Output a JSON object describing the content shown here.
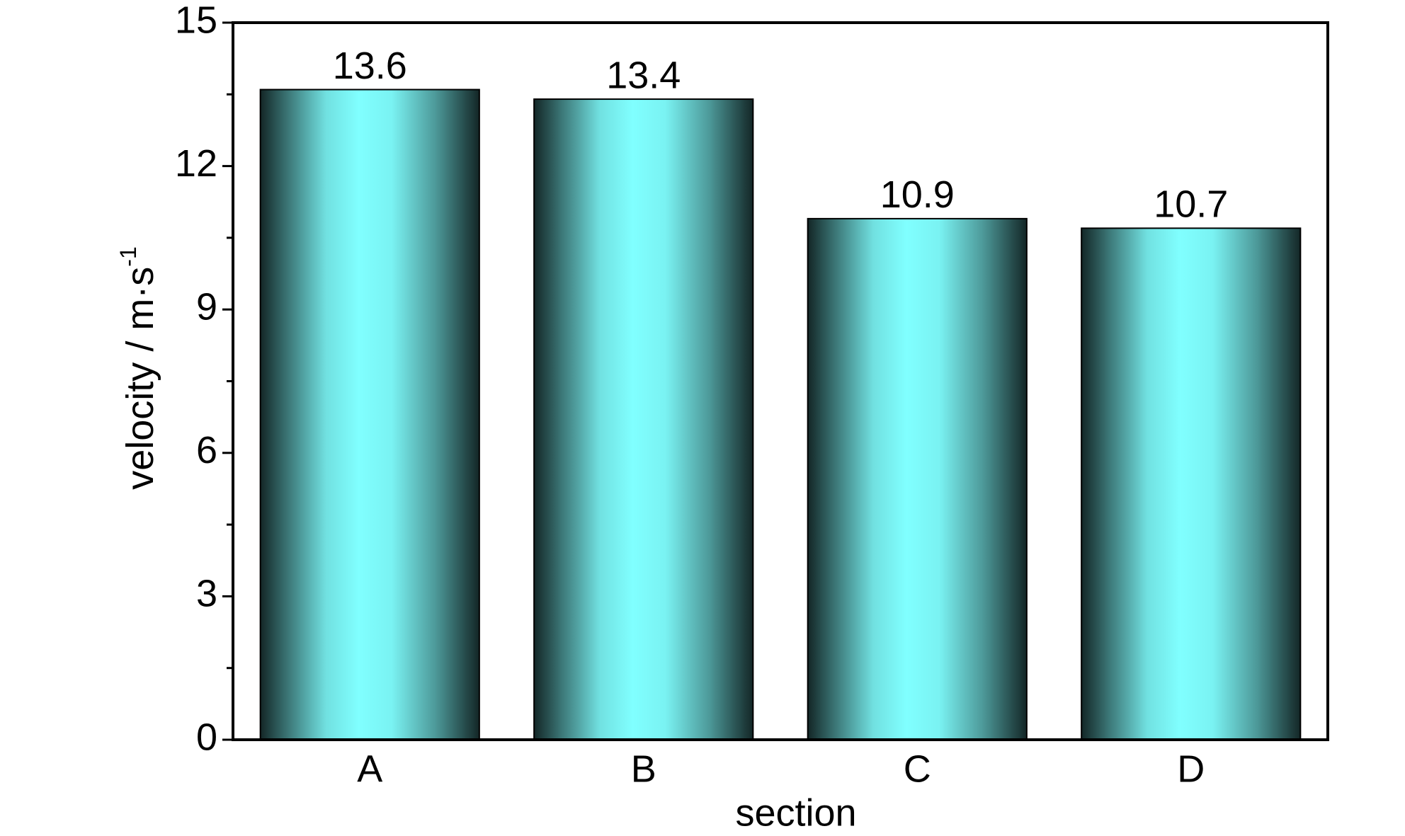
{
  "chart_data": {
    "type": "bar",
    "categories": [
      "A",
      "B",
      "C",
      "D"
    ],
    "values": [
      13.6,
      13.4,
      10.9,
      10.7
    ],
    "color": "#80ffff",
    "xlabel": "section",
    "ylabel": "velocity / m·s",
    "ylabel_sup": "-1",
    "ylim": [
      0,
      15
    ],
    "yticks": [
      0,
      3,
      6,
      9,
      12,
      15
    ],
    "yminorticks": [
      1.5,
      4.5,
      7.5,
      10.5,
      13.5
    ],
    "grid": false
  }
}
